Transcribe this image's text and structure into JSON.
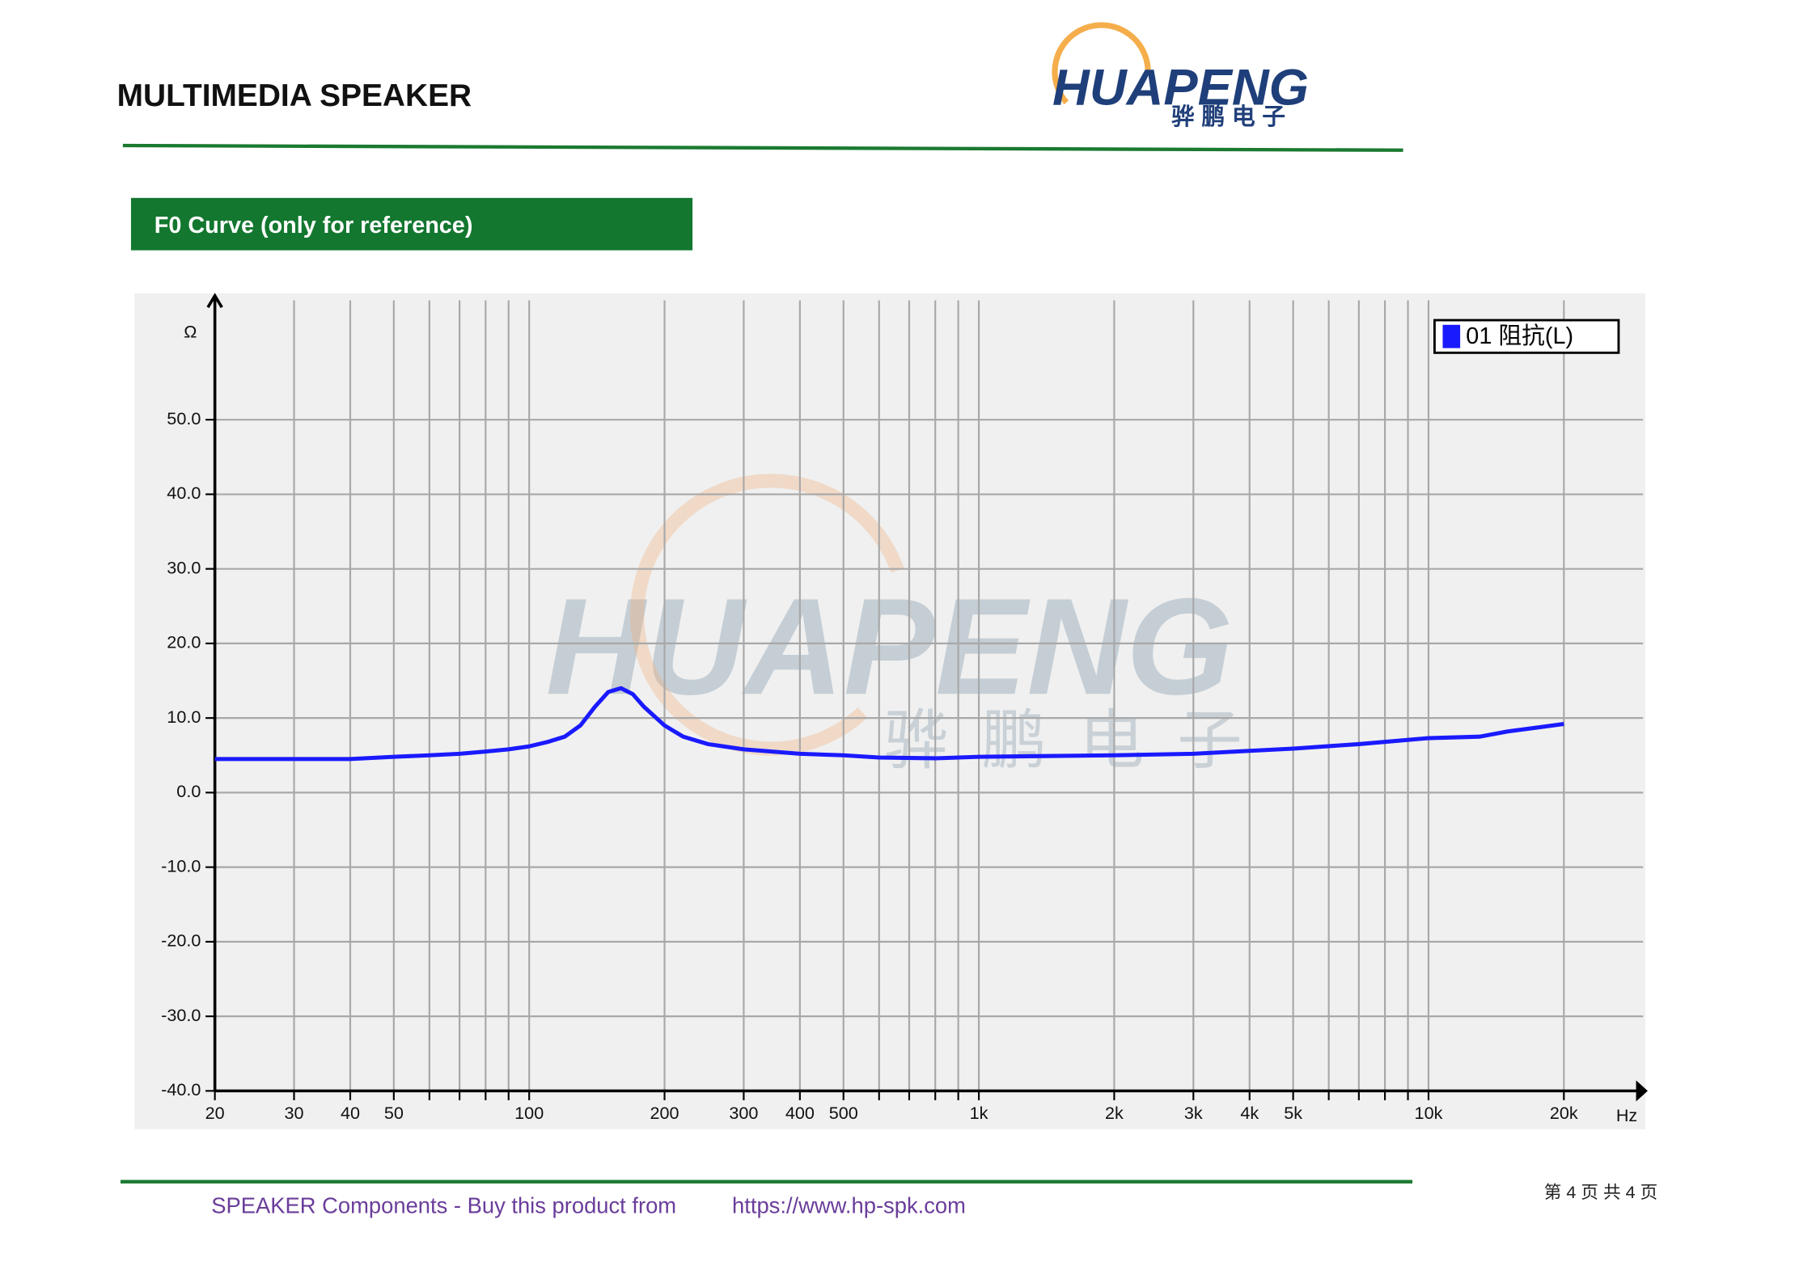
{
  "header": {
    "title": "MULTIMEDIA SPEAKER",
    "logo_name": "HUAPENG",
    "logo_subtitle": "骅鹏电子"
  },
  "section": {
    "title": "F0 Curve (only for reference)"
  },
  "chart_data": {
    "type": "line",
    "x_scale": "log",
    "grid": true,
    "y_axis_label": "Ω",
    "x_axis_label": "Hz",
    "legend_position": "top-right",
    "watermark": {
      "name": "HUAPENG",
      "subtitle": "骅鹏电子"
    },
    "x": [
      20,
      30,
      40,
      50,
      60,
      70,
      80,
      90,
      100,
      110,
      120,
      130,
      140,
      150,
      160,
      170,
      180,
      200,
      220,
      250,
      300,
      400,
      500,
      600,
      800,
      1000,
      2000,
      3000,
      4000,
      5000,
      7000,
      10000,
      13000,
      15000,
      20000
    ],
    "series": [
      {
        "name": "01 阻抗(L)",
        "color": "#1a1aff",
        "values": [
          4.5,
          4.5,
          4.5,
          4.8,
          5,
          5.2,
          5.5,
          5.8,
          6.2,
          6.8,
          7.5,
          9,
          11.5,
          13.5,
          14,
          13.2,
          11.5,
          9,
          7.5,
          6.5,
          5.8,
          5.2,
          5,
          4.7,
          4.6,
          4.8,
          5,
          5.2,
          5.6,
          5.9,
          6.5,
          7.3,
          7.5,
          8.2,
          9.2
        ]
      }
    ],
    "xlim": [
      20,
      30000
    ],
    "ylim": [
      -40,
      66
    ],
    "xticks": [
      20,
      30,
      40,
      50,
      100,
      200,
      300,
      400,
      500,
      {
        "value": 1000,
        "label": "1k"
      },
      {
        "value": 2000,
        "label": "2k"
      },
      {
        "value": 3000,
        "label": "3k"
      },
      {
        "value": 4000,
        "label": "4k"
      },
      {
        "value": 5000,
        "label": "5k"
      },
      {
        "value": 10000,
        "label": "10k"
      },
      {
        "value": 20000,
        "label": "20k"
      }
    ],
    "x_minor_ticks": [
      60,
      70,
      80,
      90,
      600,
      700,
      800,
      900,
      6000,
      7000,
      8000,
      9000
    ],
    "yticks": [
      {
        "value": -40,
        "label": "-40.0"
      },
      {
        "value": -30,
        "label": "-30.0"
      },
      {
        "value": -20,
        "label": "-20.0"
      },
      {
        "value": -10,
        "label": "-10.0"
      },
      {
        "value": 0,
        "label": "0.0"
      },
      {
        "value": 10,
        "label": "10.0"
      },
      {
        "value": 20,
        "label": "20.0"
      },
      {
        "value": 30,
        "label": "30.0"
      },
      {
        "value": 40,
        "label": "40.0"
      },
      {
        "value": 50,
        "label": "50.0"
      }
    ]
  },
  "footer": {
    "text": "SPEAKER Components - Buy this product from",
    "url": "https://www.hp-spk.com",
    "page": "第 4 页 共 4 页"
  }
}
